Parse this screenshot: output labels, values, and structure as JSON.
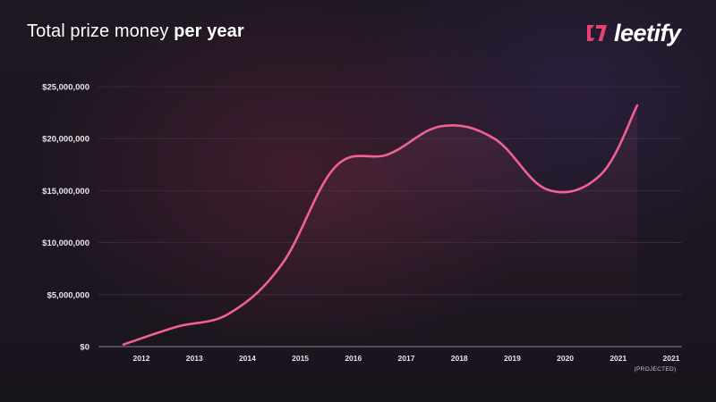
{
  "header": {
    "title_prefix": "Total prize money ",
    "title_emphasis": "per year"
  },
  "logo": {
    "text": "leetify",
    "icon": "leetify-logo-icon",
    "accent_color": "#e8436f"
  },
  "chart_data": {
    "type": "line",
    "title": "Total prize money per year",
    "xlabel": "",
    "ylabel": "",
    "ylim": [
      0,
      25000000
    ],
    "y_ticks": [
      {
        "value": 25000000,
        "label": "$25,000,000"
      },
      {
        "value": 20000000,
        "label": "$20,000,000"
      },
      {
        "value": 15000000,
        "label": "$15,000,000"
      },
      {
        "value": 10000000,
        "label": "$10,000,000"
      },
      {
        "value": 5000000,
        "label": "$5,000,000"
      },
      {
        "value": 0,
        "label": "$0"
      }
    ],
    "categories": [
      "2012",
      "2013",
      "2014",
      "2015",
      "2016",
      "2017",
      "2018",
      "2019",
      "2020",
      "2021",
      "2021"
    ],
    "category_sublabels": [
      "",
      "",
      "",
      "",
      "",
      "",
      "",
      "",
      "",
      "",
      "(PROJECTED)"
    ],
    "series": [
      {
        "name": "",
        "color": "#f06292",
        "values": [
          200000,
          1900000,
          3200000,
          8000000,
          17300000,
          18500000,
          21200000,
          20000000,
          15100000,
          16500000,
          23200000
        ]
      }
    ],
    "grid": true,
    "legend": "none",
    "colors": {
      "line": "#f06292",
      "grid": "#3a3140",
      "axis": "#8a8290",
      "text": "#e8e4ea"
    }
  }
}
